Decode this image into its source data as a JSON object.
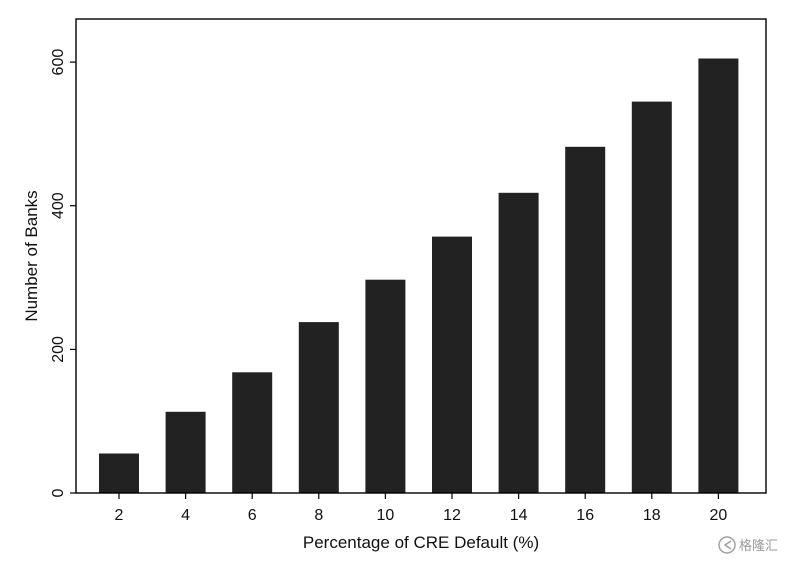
{
  "chart_data": {
    "type": "bar",
    "categories": [
      "2",
      "4",
      "6",
      "8",
      "10",
      "12",
      "14",
      "16",
      "18",
      "20"
    ],
    "values": [
      55,
      113,
      168,
      238,
      297,
      357,
      418,
      482,
      545,
      605
    ],
    "xlabel": "Percentage of CRE Default (%)",
    "ylabel": "Number of Banks",
    "yticks": [
      0,
      200,
      400,
      600
    ],
    "ylim": [
      0,
      660
    ],
    "grid": false,
    "bar_color": "#222222",
    "frame_color": "#000000",
    "background": "#ffffff"
  },
  "watermark": {
    "text": "格隆汇",
    "icon": "gelonghui-logo-icon"
  }
}
